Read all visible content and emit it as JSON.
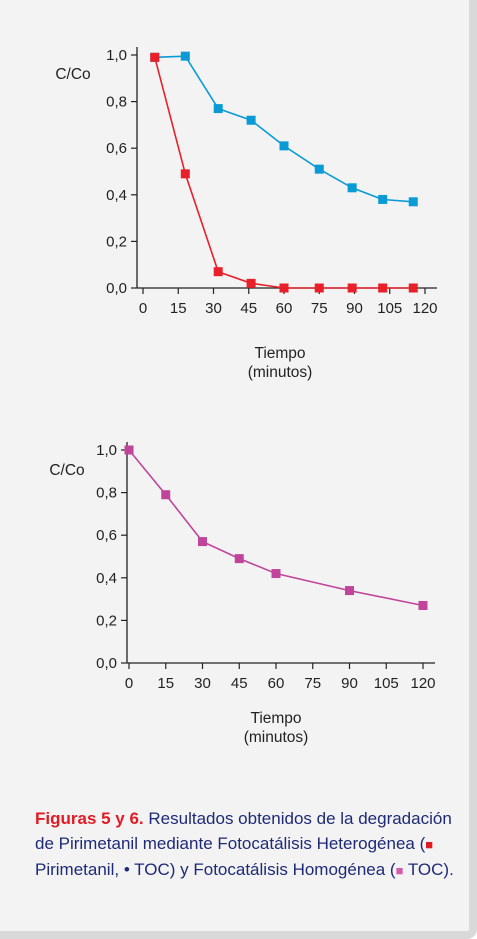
{
  "chart_data": [
    {
      "type": "line",
      "ylabel": "C/Co",
      "xlabel": "Tiempo\n(minutos)",
      "xlabel_lines": [
        "Tiempo",
        "(minutos)"
      ],
      "x_ticks": [
        0,
        15,
        30,
        45,
        60,
        75,
        90,
        105,
        120
      ],
      "y_ticks": [
        "0,0",
        "0,2",
        "0,4",
        "0,6",
        "0,8",
        "1,0"
      ],
      "xlim": [
        0,
        120
      ],
      "ylim": [
        0,
        1.0
      ],
      "grid": false,
      "series": [
        {
          "color": "#0a9bd6",
          "x": [
            5,
            18,
            32,
            46,
            60,
            75,
            89,
            102,
            115
          ],
          "y": [
            0.99,
            0.995,
            0.77,
            0.72,
            0.61,
            0.51,
            0.43,
            0.38,
            0.37
          ]
        },
        {
          "color": "#e8202a",
          "x": [
            5,
            18,
            32,
            46,
            60,
            75,
            89,
            102,
            115
          ],
          "y": [
            0.99,
            0.49,
            0.07,
            0.02,
            0.0,
            0.0,
            0.0,
            0.0,
            0.0
          ]
        }
      ]
    },
    {
      "type": "line",
      "ylabel": "C/Co",
      "xlabel": "Tiempo\n(minutos)",
      "xlabel_lines": [
        "Tiempo",
        "(minutos)"
      ],
      "x_ticks": [
        0,
        15,
        30,
        45,
        60,
        75,
        90,
        105,
        120
      ],
      "y_ticks": [
        "0,0",
        "0,2",
        "0,4",
        "0,6",
        "0,8",
        "1,0"
      ],
      "xlim": [
        0,
        120
      ],
      "ylim": [
        0,
        1.0
      ],
      "grid": false,
      "series": [
        {
          "color": "#c0449a",
          "x": [
            0,
            15,
            30,
            45,
            60,
            90,
            120
          ],
          "y": [
            1.0,
            0.79,
            0.57,
            0.49,
            0.42,
            0.34,
            0.27
          ]
        }
      ]
    }
  ],
  "caption": {
    "bold": "Figuras 5 y 6.",
    "text1": " Resultados obtenidos de la degradación de Pirimetanil mediante Fotocatálisis Heterogénea (",
    "legend1": " Pirimetanil, ",
    "legend2": " TOC) y Fotocatálisis Homogénea (",
    "legend3": " TOC).",
    "square_glyph": "■",
    "dot_glyph": "•"
  },
  "colors": {
    "text": "#1e2a78",
    "accent": "#e01b24",
    "series_blue": "#0a9bd6",
    "series_red": "#e8202a",
    "series_pink": "#c0449a"
  }
}
